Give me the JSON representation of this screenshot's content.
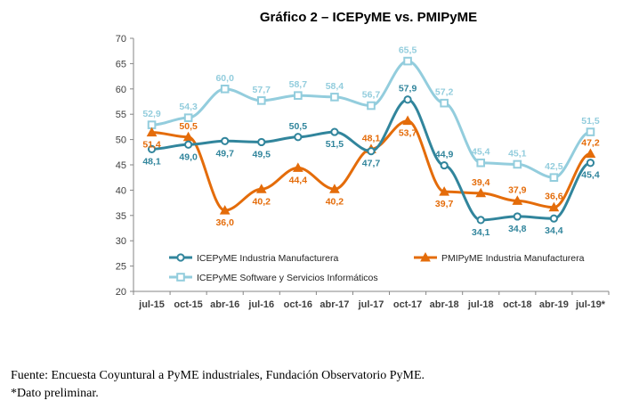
{
  "chart_data": {
    "type": "line",
    "title": "Gráfico 2 – ICEPyME vs. PMIPyME",
    "categories": [
      "jul-15",
      "oct-15",
      "abr-16",
      "jul-16",
      "oct-16",
      "abr-17",
      "jul-17",
      "oct-17",
      "abr-18",
      "jul-18",
      "oct-18",
      "abr-19",
      "jul-19*"
    ],
    "ylim": [
      20,
      70
    ],
    "yticks": [
      20,
      25,
      30,
      35,
      40,
      45,
      50,
      55,
      60,
      65,
      70
    ],
    "grid": false,
    "legend_placement": "bottom-center",
    "series": [
      {
        "name": "ICEPyME Industria Manufacturera",
        "color": "#31859C",
        "marker": "circle",
        "values": [
          48.1,
          49.0,
          49.7,
          49.5,
          50.5,
          51.5,
          47.7,
          57.9,
          44.9,
          34.1,
          34.8,
          34.4,
          45.4
        ],
        "labels": [
          "48,1",
          "49,0",
          "49,7",
          "49,5",
          "50,5",
          "51,5",
          "47,7",
          "57,9",
          "44,9",
          "34,1",
          "34,8",
          "34,4",
          "45,4"
        ]
      },
      {
        "name": "PMIPyME Industria Manufacturera",
        "color": "#E46C0A",
        "marker": "triangle",
        "values": [
          51.4,
          50.5,
          36.0,
          40.2,
          44.4,
          40.2,
          48.1,
          53.7,
          39.7,
          39.4,
          37.9,
          36.6,
          47.2
        ],
        "labels": [
          "51,4",
          "50,5",
          "36,0",
          "40,2",
          "44,4",
          "40,2",
          "48,1",
          "53,7",
          "39,7",
          "39,4",
          "37,9",
          "36,6",
          "47,2"
        ]
      },
      {
        "name": "ICEPyME Software y Servicios Informáticos",
        "color": "#93CDDD",
        "marker": "square",
        "values": [
          52.9,
          54.3,
          60.0,
          57.7,
          58.7,
          58.4,
          56.7,
          65.5,
          57.2,
          45.4,
          45.1,
          42.5,
          51.5
        ],
        "labels": [
          "52,9",
          "54,3",
          "60,0",
          "57,7",
          "58,7",
          "58,4",
          "56,7",
          "65,5",
          "57,2",
          "45,4",
          "45,1",
          "42,5",
          "51,5"
        ]
      }
    ]
  },
  "footnotes": {
    "source": "Fuente: Encuesta Coyuntural a PyME industriales, Fundación Observatorio PyME.",
    "note": "*Dato preliminar."
  }
}
